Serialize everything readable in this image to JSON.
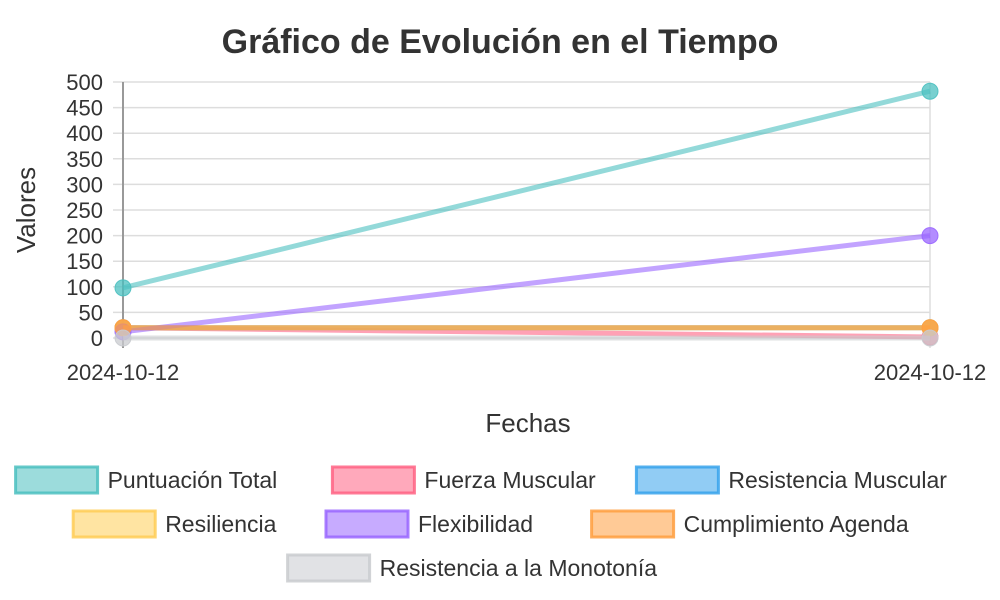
{
  "chart_data": {
    "type": "line",
    "title": "Gráfico de Evolución en el Tiempo",
    "xlabel": "Fechas",
    "ylabel": "Valores",
    "categories": [
      "2024-10-12",
      "2024-10-12"
    ],
    "ylim": [
      0,
      500
    ],
    "yticks": [
      0,
      50,
      100,
      150,
      200,
      250,
      300,
      350,
      400,
      450,
      500
    ],
    "grid": true,
    "legend_position": "bottom",
    "series": [
      {
        "name": "Puntuación Total",
        "values": [
          98,
          482
        ],
        "color": "#4bc0c0"
      },
      {
        "name": "Fuerza Muscular",
        "values": [
          20,
          2
        ],
        "color": "#ff6384"
      },
      {
        "name": "Resistencia Muscular",
        "values": [
          20,
          20
        ],
        "color": "#36a2eb"
      },
      {
        "name": "Resiliencia",
        "values": [
          20,
          20
        ],
        "color": "#ffcd56"
      },
      {
        "name": "Flexibilidad",
        "values": [
          12,
          200
        ],
        "color": "#9966ff"
      },
      {
        "name": "Cumplimiento Agenda",
        "values": [
          20,
          20
        ],
        "color": "#ff9f40"
      },
      {
        "name": "Resistencia a la Monotonía",
        "values": [
          0,
          0
        ],
        "color": "#c9cbcf"
      }
    ]
  }
}
